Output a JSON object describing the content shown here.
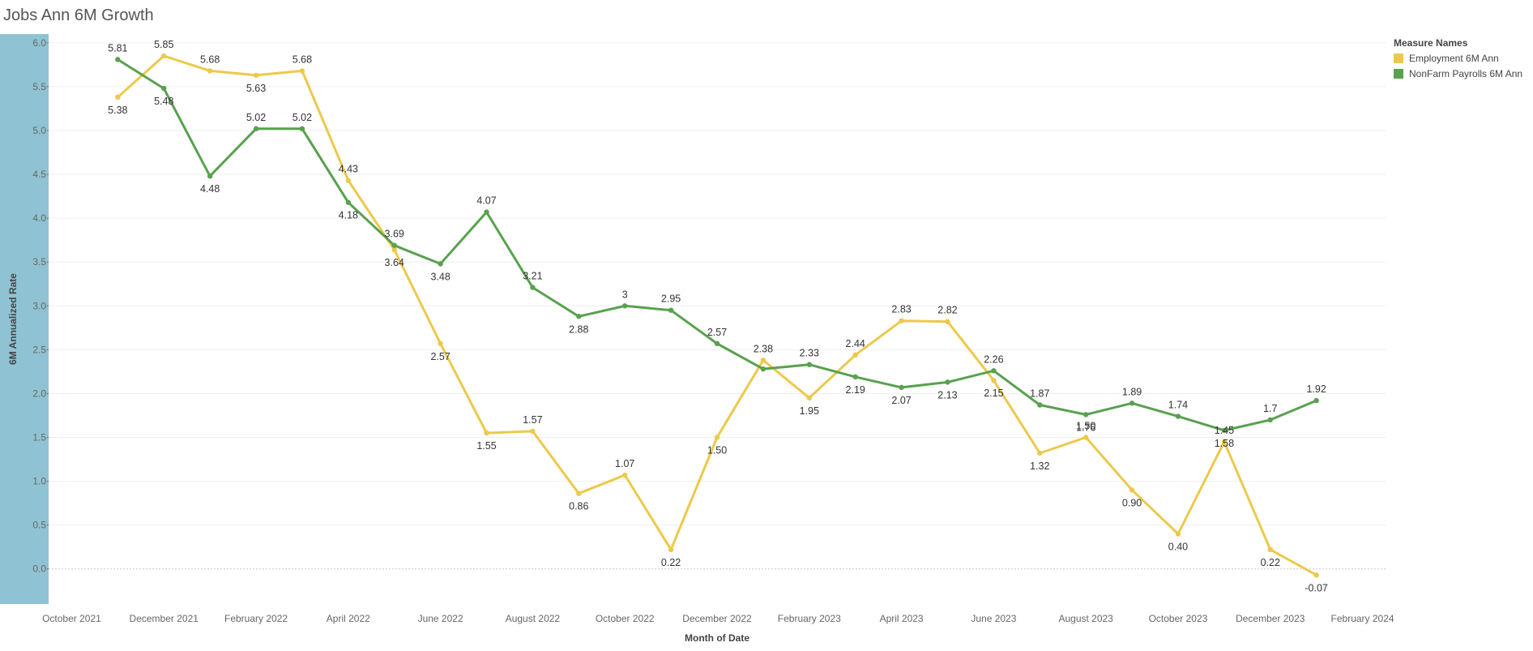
{
  "title": "Jobs Ann 6M Growth",
  "legend": {
    "title": "Measure Names",
    "items": [
      {
        "label": "Employment  6M Ann",
        "color": "#ecc94b"
      },
      {
        "label": "NonFarm Payrolls 6M Ann",
        "color": "#59a14f"
      }
    ]
  },
  "colors": {
    "axis_band": "#8fc3d3"
  },
  "chart_data": {
    "type": "line",
    "xlabel": "Month of Date",
    "ylabel": "6M Annualized Rate",
    "ylim": [
      -0.4,
      6.1
    ],
    "yticks": [
      0.0,
      0.5,
      1.0,
      1.5,
      2.0,
      2.5,
      3.0,
      3.5,
      4.0,
      4.5,
      5.0,
      5.5,
      6.0
    ],
    "ytick_labels": [
      "0.0",
      "0.5",
      "1.0",
      "1.5",
      "2.0",
      "2.5",
      "3.0",
      "3.5",
      "4.0",
      "4.5",
      "5.0",
      "5.5",
      "6.0"
    ],
    "grid": true,
    "x": [
      "2021-10",
      "2021-11",
      "2021-12",
      "2022-01",
      "2022-02",
      "2022-03",
      "2022-04",
      "2022-05",
      "2022-06",
      "2022-07",
      "2022-08",
      "2022-09",
      "2022-10",
      "2022-11",
      "2022-12",
      "2023-01",
      "2023-02",
      "2023-03",
      "2023-04",
      "2023-05",
      "2023-06",
      "2023-07",
      "2023-08",
      "2023-09",
      "2023-10",
      "2023-11",
      "2023-12",
      "2024-01",
      "2024-02"
    ],
    "xtick_labels": [
      "October 2021",
      "December 2021",
      "February 2022",
      "April 2022",
      "June 2022",
      "August 2022",
      "October 2022",
      "December 2022",
      "February 2023",
      "April 2023",
      "June 2023",
      "August 2023",
      "October 2023",
      "December 2023",
      "February 2024"
    ],
    "series": [
      {
        "name": "Employment  6M Ann",
        "color": "#ecc94b",
        "values": [
          null,
          5.38,
          5.85,
          5.68,
          5.63,
          5.68,
          4.43,
          3.64,
          2.57,
          1.55,
          1.57,
          0.86,
          1.07,
          0.22,
          1.5,
          2.38,
          1.95,
          2.44,
          2.83,
          2.82,
          2.15,
          1.32,
          1.5,
          0.9,
          0.4,
          1.45,
          0.22,
          -0.07,
          null
        ],
        "labels": [
          null,
          "5.38",
          "5.85",
          "5.68",
          "5.63",
          "5.68",
          "4.43",
          "3.64",
          "2.57",
          "1.55",
          "1.57",
          "0.86",
          "1.07",
          "0.22",
          "1.50",
          "2.38",
          "1.95",
          "2.44",
          "2.83",
          "2.82",
          "2.15",
          "1.32",
          "1.50",
          "0.90",
          "0.40",
          "1.45",
          "0.22",
          "-0.07",
          null
        ]
      },
      {
        "name": "NonFarm Payrolls 6M Ann",
        "color": "#59a14f",
        "values": [
          null,
          5.81,
          5.48,
          4.48,
          5.02,
          5.02,
          4.18,
          3.69,
          3.48,
          4.07,
          3.21,
          2.88,
          3.0,
          2.95,
          2.57,
          2.28,
          2.33,
          2.19,
          2.07,
          2.13,
          2.26,
          1.87,
          1.76,
          1.89,
          1.74,
          1.58,
          1.7,
          1.92,
          null
        ],
        "labels": [
          null,
          "5.81",
          "5.48",
          "4.48",
          "5.02",
          "5.02",
          "4.18",
          "3.69",
          "3.48",
          "4.07",
          "3.21",
          "2.88",
          "3",
          "2.95",
          "2.57",
          null,
          "2.33",
          "2.19",
          "2.07",
          "2.13",
          "2.26",
          "1.87",
          "1.76",
          "1.89",
          "1.74",
          "1.58",
          "1.7",
          "1.92",
          null
        ]
      }
    ]
  }
}
